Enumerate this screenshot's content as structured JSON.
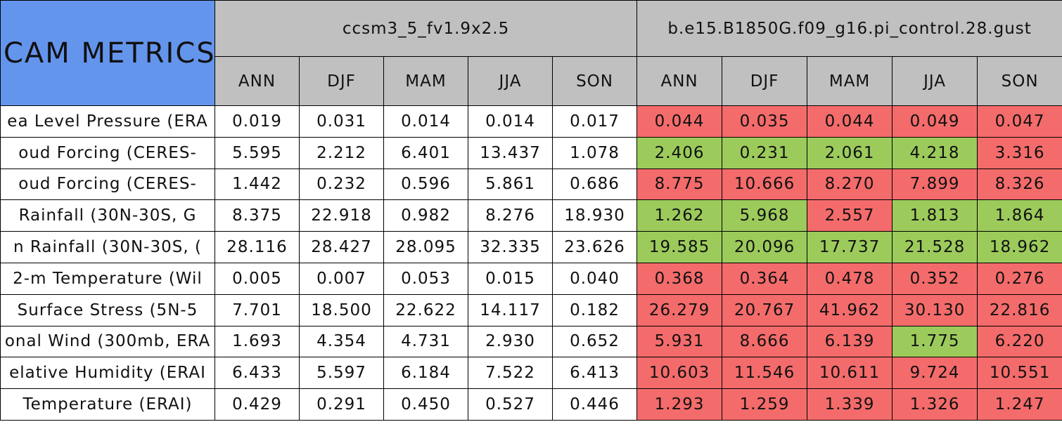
{
  "header": {
    "title": "CAM METRICS",
    "groups": [
      "ccsm3_5_fv1.9x2.5",
      "b.e15.B1850G.f09_g16.pi_control.28.gust"
    ],
    "seasons": [
      "ANN",
      "DJF",
      "MAM",
      "JJA",
      "SON"
    ]
  },
  "colors": {
    "title": "#6495ed",
    "header": "#c0c0c0",
    "red": "#f46b6b",
    "green": "#9ccb5b"
  },
  "rows": [
    {
      "label": "ea Level Pressure (ERA",
      "values": [
        "0.019",
        "0.031",
        "0.014",
        "0.014",
        "0.017",
        "0.044",
        "0.035",
        "0.044",
        "0.049",
        "0.047"
      ],
      "flags": [
        "red",
        "red",
        "red",
        "red",
        "red"
      ]
    },
    {
      "label": "oud Forcing (CERES-",
      "values": [
        "5.595",
        "2.212",
        "6.401",
        "13.437",
        "1.078",
        "2.406",
        "0.231",
        "2.061",
        "4.218",
        "3.316"
      ],
      "flags": [
        "green",
        "green",
        "green",
        "green",
        "red"
      ]
    },
    {
      "label": "oud Forcing (CERES-",
      "values": [
        "1.442",
        "0.232",
        "0.596",
        "5.861",
        "0.686",
        "8.775",
        "10.666",
        "8.270",
        "7.899",
        "8.326"
      ],
      "flags": [
        "red",
        "red",
        "red",
        "red",
        "red"
      ]
    },
    {
      "label": "Rainfall (30N-30S, G",
      "values": [
        "8.375",
        "22.918",
        "0.982",
        "8.276",
        "18.930",
        "1.262",
        "5.968",
        "2.557",
        "1.813",
        "1.864"
      ],
      "flags": [
        "green",
        "green",
        "red",
        "green",
        "green"
      ]
    },
    {
      "label": "n Rainfall (30N-30S, (",
      "values": [
        "28.116",
        "28.427",
        "28.095",
        "32.335",
        "23.626",
        "19.585",
        "20.096",
        "17.737",
        "21.528",
        "18.962"
      ],
      "flags": [
        "green",
        "green",
        "green",
        "green",
        "green"
      ]
    },
    {
      "label": "2-m Temperature (Wil",
      "values": [
        "0.005",
        "0.007",
        "0.053",
        "0.015",
        "0.040",
        "0.368",
        "0.364",
        "0.478",
        "0.352",
        "0.276"
      ],
      "flags": [
        "red",
        "red",
        "red",
        "red",
        "red"
      ]
    },
    {
      "label": "Surface Stress (5N-5",
      "values": [
        "7.701",
        "18.500",
        "22.622",
        "14.117",
        "0.182",
        "26.279",
        "20.767",
        "41.962",
        "30.130",
        "22.816"
      ],
      "flags": [
        "red",
        "red",
        "red",
        "red",
        "red"
      ]
    },
    {
      "label": "onal Wind (300mb, ERA",
      "values": [
        "1.693",
        "4.354",
        "4.731",
        "2.930",
        "0.652",
        "5.931",
        "8.666",
        "6.139",
        "1.775",
        "6.220"
      ],
      "flags": [
        "red",
        "red",
        "red",
        "green",
        "red"
      ]
    },
    {
      "label": "elative Humidity (ERAI",
      "values": [
        "6.433",
        "5.597",
        "6.184",
        "7.522",
        "6.413",
        "10.603",
        "11.546",
        "10.611",
        "9.724",
        "10.551"
      ],
      "flags": [
        "red",
        "red",
        "red",
        "red",
        "red"
      ]
    },
    {
      "label": "Temperature (ERAI)",
      "values": [
        "0.429",
        "0.291",
        "0.450",
        "0.527",
        "0.446",
        "1.293",
        "1.259",
        "1.339",
        "1.326",
        "1.247"
      ],
      "flags": [
        "red",
        "red",
        "red",
        "red",
        "red"
      ]
    }
  ]
}
